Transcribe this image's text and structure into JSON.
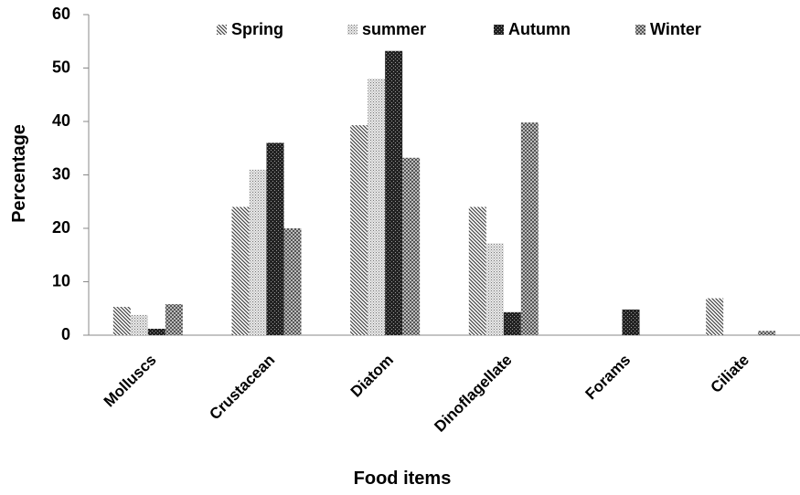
{
  "chart_data": {
    "type": "bar",
    "x_label": "Food items",
    "y_label": "Percentage",
    "categories": [
      "Molluscs",
      "Crustacean",
      "Diatom",
      "Dinoflagellate",
      "Forams",
      "Ciliate"
    ],
    "series": [
      {
        "name": "Spring",
        "color": "#444444",
        "values": [
          5.3,
          24,
          39.3,
          24,
          0,
          6.9
        ]
      },
      {
        "name": "summer",
        "color": "#8a8a8a",
        "values": [
          3.8,
          31,
          48,
          17.2,
          0,
          0
        ]
      },
      {
        "name": "Autumn",
        "color": "#222222",
        "values": [
          1.2,
          36,
          53.2,
          4.3,
          4.8,
          0
        ]
      },
      {
        "name": "Winter",
        "color": "#555555",
        "values": [
          5.8,
          20,
          33.2,
          39.8,
          0,
          0.8
        ]
      }
    ],
    "ylim": [
      0,
      60
    ],
    "yticks": [
      0,
      10,
      20,
      30,
      40,
      50,
      60
    ]
  }
}
